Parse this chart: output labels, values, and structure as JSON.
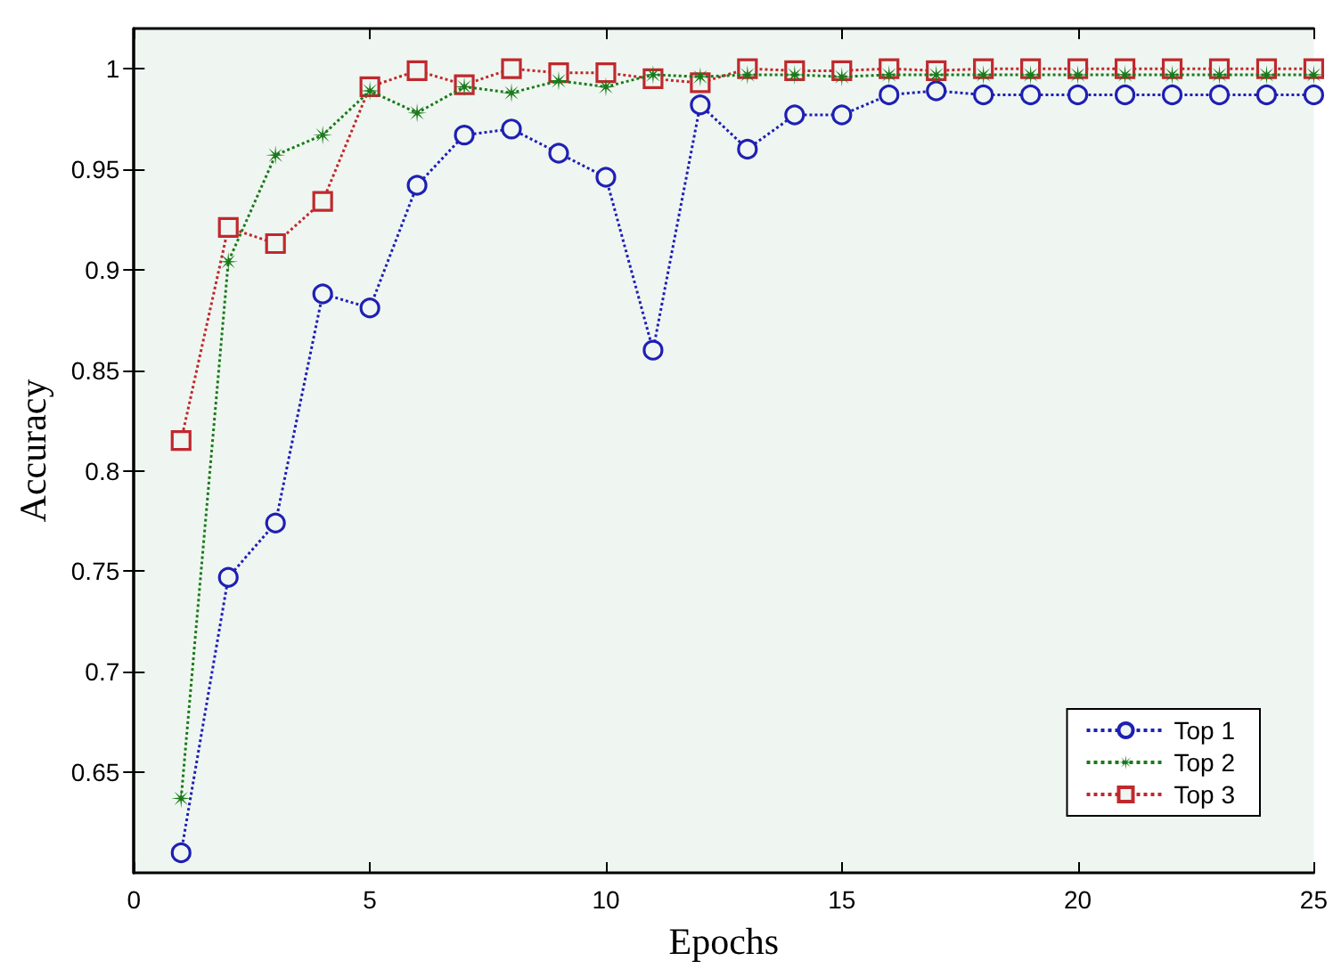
{
  "chart_data": {
    "type": "line",
    "xlabel": "Epochs",
    "ylabel": "Accuracy",
    "x": [
      1,
      2,
      3,
      4,
      5,
      6,
      7,
      8,
      9,
      10,
      11,
      12,
      13,
      14,
      15,
      16,
      17,
      18,
      19,
      20,
      21,
      22,
      23,
      24,
      25
    ],
    "series": [
      {
        "name": "Top 1",
        "color": "#1f1fb4",
        "marker": "circle",
        "values": [
          0.61,
          0.747,
          0.774,
          0.888,
          0.881,
          0.942,
          0.967,
          0.97,
          0.958,
          0.946,
          0.86,
          0.982,
          0.96,
          0.977,
          0.977,
          0.987,
          0.989,
          0.987,
          0.987,
          0.987,
          0.987,
          0.987,
          0.987,
          0.987,
          0.987
        ]
      },
      {
        "name": "Top 2",
        "color": "#1a7a1a",
        "marker": "star",
        "values": [
          0.637,
          0.904,
          0.957,
          0.967,
          0.989,
          0.978,
          0.991,
          0.988,
          0.994,
          0.991,
          0.997,
          0.996,
          0.997,
          0.997,
          0.996,
          0.997,
          0.997,
          0.997,
          0.997,
          0.997,
          0.997,
          0.997,
          0.997,
          0.997,
          0.997
        ]
      },
      {
        "name": "Top 3",
        "color": "#c0282d",
        "marker": "square",
        "values": [
          0.815,
          0.921,
          0.913,
          0.934,
          0.991,
          0.999,
          0.992,
          1.0,
          0.998,
          0.998,
          0.995,
          0.993,
          1.0,
          0.999,
          0.999,
          1.0,
          0.999,
          1.0,
          1.0,
          1.0,
          1.0,
          1.0,
          1.0,
          1.0,
          1.0
        ]
      }
    ],
    "xlim": [
      0,
      25
    ],
    "xticks": [
      0,
      5,
      10,
      15,
      20,
      25
    ],
    "ylim": [
      0.6,
      1.02
    ],
    "yticks": [
      0.65,
      0.7,
      0.75,
      0.8,
      0.85,
      0.9,
      0.95,
      1
    ],
    "line_style": "dotted",
    "legend": "bottom right",
    "grid": false
  }
}
